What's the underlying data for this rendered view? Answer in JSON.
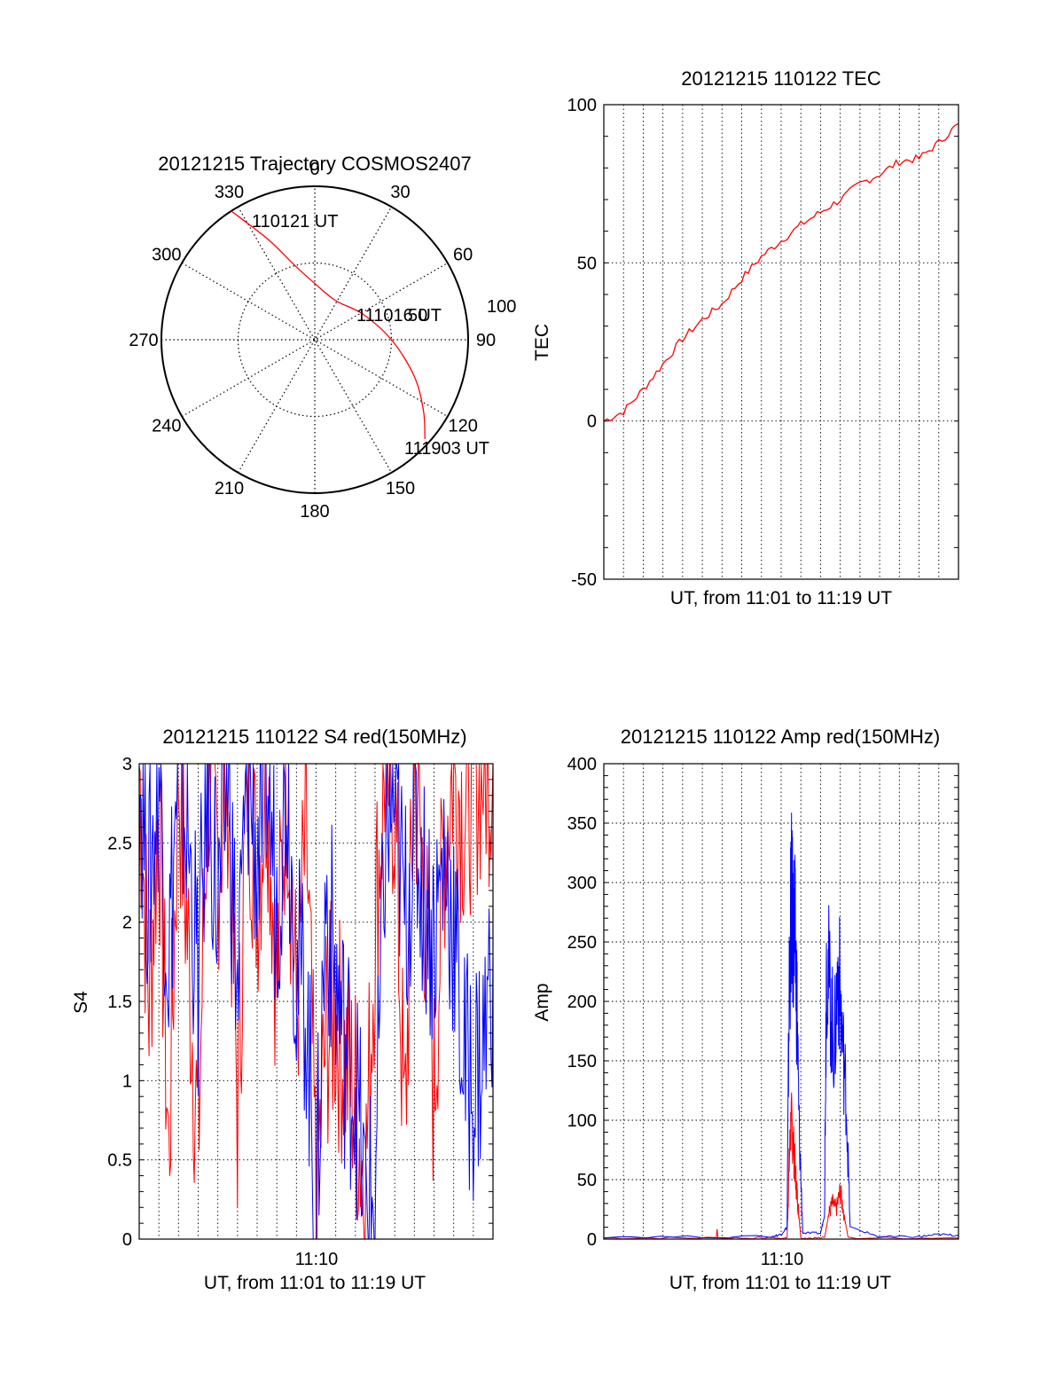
{
  "chart_data": [
    {
      "type": "polar",
      "title": "20121215 Trajectory COSMOS2407",
      "angle_labels": [
        "0",
        "30",
        "60",
        "90",
        "120",
        "150",
        "180",
        "210",
        "240",
        "270",
        "300",
        "330"
      ],
      "radial_labels": [
        "50",
        "100"
      ],
      "start_label": "110121 UT",
      "mid_label": "111016 UT",
      "end_label": "111903 UT",
      "trajectory": [
        {
          "az": 327,
          "zen": 90
        },
        {
          "az": 335,
          "zen": 65
        },
        {
          "az": 345,
          "zen": 45
        },
        {
          "az": 0,
          "zen": 33
        },
        {
          "az": 28,
          "zen": 26
        },
        {
          "az": 62,
          "zen": 32
        },
        {
          "az": 90,
          "zen": 45
        },
        {
          "az": 110,
          "zen": 62
        },
        {
          "az": 123,
          "zen": 76
        },
        {
          "az": 132,
          "zen": 87
        }
      ],
      "color": "#ff0000"
    },
    {
      "type": "line",
      "title": "20121215 110122 TEC",
      "xlabel": "UT, from 11:01 to 11:19 UT",
      "ylabel": "TEC",
      "ylim": [
        -50,
        100
      ],
      "yticks": [
        "-50",
        "0",
        "50",
        "100"
      ],
      "xlim": [
        0,
        18
      ],
      "grid": true,
      "series": [
        {
          "color": "#ff0000",
          "x": [
            0,
            1,
            2,
            3,
            4,
            5,
            6,
            7,
            8,
            9,
            10,
            11,
            12,
            13,
            14,
            15,
            16,
            17,
            18
          ],
          "values": [
            0,
            3,
            10,
            18,
            26,
            32,
            37,
            45,
            52,
            57,
            62,
            66,
            70,
            75,
            78,
            82,
            83,
            88,
            94
          ]
        }
      ]
    },
    {
      "type": "line",
      "title": "20121215 110122 S4 red(150MHz)",
      "xlabel": "UT, from 11:01 to 11:19 UT",
      "ylabel": "S4",
      "ylim": [
        0,
        3
      ],
      "yticks": [
        "0",
        "0.5",
        "1",
        "1.5",
        "2",
        "2.5",
        "3"
      ],
      "xticks": [
        "11:10"
      ],
      "xlim": [
        0,
        18
      ],
      "grid": true,
      "series": [
        {
          "color": "#ff0000",
          "x": [
            0,
            0.5,
            1,
            1.5,
            2,
            2.5,
            3,
            3.5,
            4,
            4.5,
            5,
            5.5,
            6,
            6.5,
            7,
            7.5,
            8,
            8.5,
            9,
            9.5,
            10,
            10.5,
            11,
            11.5,
            12,
            12.5,
            13,
            13.5,
            14,
            14.5,
            15,
            15.5,
            16,
            16.5,
            17,
            17.5,
            18
          ],
          "values": [
            3,
            1.5,
            2.8,
            0.5,
            3,
            1.8,
            0.6,
            3,
            2.4,
            3,
            0.8,
            3,
            2.2,
            3,
            1.6,
            3,
            1.4,
            2.6,
            0.2,
            1.3,
            1.4,
            1.1,
            0.9,
            0.3,
            2.0,
            3,
            2.8,
            0.6,
            3,
            2.2,
            0.9,
            2.5,
            3,
            2.7,
            2.9,
            3,
            3
          ]
        },
        {
          "color": "#0000ff",
          "x": [
            0,
            0.5,
            1,
            1.5,
            2,
            2.5,
            3,
            3.5,
            4,
            4.5,
            5,
            5.5,
            6,
            6.5,
            7,
            7.5,
            8,
            8.5,
            9,
            9.5,
            10,
            10.5,
            11,
            11.5,
            12,
            12.5,
            13,
            13.5,
            14,
            14.5,
            15,
            15.5,
            16,
            16.5,
            17,
            17.5,
            18
          ],
          "values": [
            3,
            2.2,
            3,
            1.8,
            3,
            2.5,
            1.6,
            3,
            2.0,
            3,
            1.5,
            3,
            2.4,
            3,
            2.1,
            3,
            1.7,
            1.5,
            0.1,
            2.2,
            1.6,
            1.2,
            1.0,
            0.2,
            0.2,
            2.5,
            2.8,
            2.0,
            2.6,
            2.2,
            1.9,
            2.4,
            2.0,
            1.1,
            1.0,
            1.2,
            1.8
          ]
        }
      ]
    },
    {
      "type": "line",
      "title": "20121215 110122 Amp red(150MHz)",
      "xlabel": "UT, from 11:01 to 11:19 UT",
      "ylabel": "Amp",
      "ylim": [
        0,
        400
      ],
      "yticks": [
        "0",
        "50",
        "100",
        "150",
        "200",
        "250",
        "300",
        "350",
        "400"
      ],
      "xticks": [
        "11:10"
      ],
      "xlim": [
        0,
        18
      ],
      "grid": true,
      "series": [
        {
          "color": "#ff0000",
          "x": [
            0,
            5.7,
            5.75,
            5.8,
            9.3,
            9.4,
            9.5,
            9.6,
            9.7,
            9.8,
            9.9,
            10,
            11.2,
            11.4,
            11.6,
            11.8,
            12.0,
            12.2,
            12.4,
            18
          ],
          "values": [
            1,
            1,
            8,
            1,
            1,
            60,
            100,
            85,
            60,
            40,
            20,
            1,
            1,
            20,
            30,
            25,
            40,
            20,
            1,
            1
          ]
        },
        {
          "color": "#0000ff",
          "x": [
            0,
            8.5,
            9.0,
            9.3,
            9.4,
            9.5,
            9.6,
            9.7,
            9.8,
            9.9,
            10.1,
            11.0,
            11.2,
            11.3,
            11.5,
            11.7,
            11.9,
            12.1,
            12.3,
            12.5,
            14,
            16,
            17,
            18
          ],
          "values": [
            2,
            2,
            4,
            10,
            200,
            280,
            265,
            250,
            200,
            100,
            5,
            5,
            20,
            245,
            200,
            160,
            230,
            170,
            120,
            10,
            2,
            2,
            4,
            3
          ]
        }
      ]
    }
  ]
}
